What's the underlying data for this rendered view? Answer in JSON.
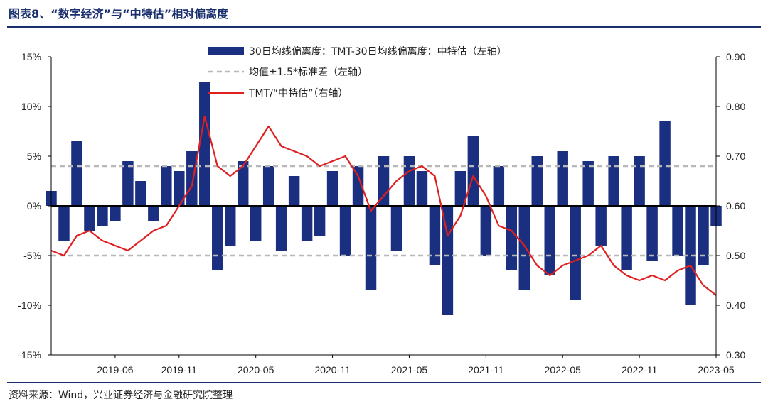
{
  "header": {
    "title": "图表8、“数字经济”与“中特估”相对偏离度"
  },
  "footer": {
    "source": "资料来源：Wind，兴业证券经济与金融研究院整理"
  },
  "chart_data": {
    "type": "bar+line",
    "title": "",
    "x_ticks": [
      "2019-06",
      "2019-11",
      "2020-05",
      "2020-11",
      "2021-05",
      "2021-11",
      "2022-05",
      "2022-11",
      "2023-05"
    ],
    "x_start": "2019-01",
    "x_end": "2023-05",
    "y_left": {
      "ticks": [
        "15%",
        "10%",
        "5%",
        "0%",
        "-5%",
        "-10%",
        "-15%"
      ],
      "min": -15,
      "max": 15
    },
    "y_right": {
      "ticks": [
        "0.90",
        "0.80",
        "0.70",
        "0.60",
        "0.50",
        "0.40",
        "0.30"
      ],
      "min": 0.3,
      "max": 0.9
    },
    "legend": [
      {
        "label": "30日均线偏离度：TMT-30日均线偏离度：中特估（左轴）",
        "kind": "bar",
        "color": "#1a2f7f"
      },
      {
        "label": "均值±1.5*标准差（左轴）",
        "kind": "dash",
        "color": "#b8b8b8"
      },
      {
        "label": "TMT/“中特估”（右轴）",
        "kind": "line",
        "color": "#e02020"
      }
    ],
    "bands": {
      "upper": 4.0,
      "lower": -5.0
    },
    "bar_series": {
      "name": "30日均线偏离度：TMT-30日均线偏离度：中特估（左轴）",
      "dates": [
        "2019-01",
        "2019-02",
        "2019-03",
        "2019-04",
        "2019-05",
        "2019-06",
        "2019-07",
        "2019-08",
        "2019-09",
        "2019-10",
        "2019-11",
        "2019-12",
        "2020-01",
        "2020-02",
        "2020-03",
        "2020-04",
        "2020-05",
        "2020-06",
        "2020-07",
        "2020-08",
        "2020-09",
        "2020-10",
        "2020-11",
        "2020-12",
        "2021-01",
        "2021-02",
        "2021-03",
        "2021-04",
        "2021-05",
        "2021-06",
        "2021-07",
        "2021-08",
        "2021-09",
        "2021-10",
        "2021-11",
        "2021-12",
        "2022-01",
        "2022-02",
        "2022-03",
        "2022-04",
        "2022-05",
        "2022-06",
        "2022-07",
        "2022-08",
        "2022-09",
        "2022-10",
        "2022-11",
        "2022-12",
        "2023-01",
        "2023-02",
        "2023-03",
        "2023-04",
        "2023-05"
      ],
      "values": [
        1.5,
        -3.5,
        6.5,
        -2.5,
        -2.0,
        -1.5,
        4.5,
        2.5,
        -1.5,
        4.0,
        3.5,
        5.5,
        12.5,
        -6.5,
        -4.0,
        4.5,
        -3.5,
        4.0,
        -4.5,
        3.0,
        -3.5,
        -3.0,
        3.5,
        -5.0,
        4.0,
        -8.5,
        5.0,
        -4.5,
        5.0,
        3.5,
        -6.0,
        -11.0,
        3.5,
        7.0,
        -5.0,
        4.0,
        -6.5,
        -8.5,
        5.0,
        -7.0,
        5.5,
        -9.5,
        4.5,
        -4.0,
        5.0,
        -6.5,
        5.0,
        -5.5,
        8.5,
        -5.0,
        -10.0,
        -6.0,
        -2.0
      ]
    },
    "line_series": {
      "name": "TMT/“中特估”（右轴）",
      "dates": [
        "2019-01",
        "2019-02",
        "2019-03",
        "2019-04",
        "2019-05",
        "2019-06",
        "2019-07",
        "2019-08",
        "2019-09",
        "2019-10",
        "2019-11",
        "2019-12",
        "2020-01",
        "2020-02",
        "2020-03",
        "2020-04",
        "2020-05",
        "2020-06",
        "2020-07",
        "2020-08",
        "2020-09",
        "2020-10",
        "2020-11",
        "2020-12",
        "2021-01",
        "2021-02",
        "2021-03",
        "2021-04",
        "2021-05",
        "2021-06",
        "2021-07",
        "2021-08",
        "2021-09",
        "2021-10",
        "2021-11",
        "2021-12",
        "2022-01",
        "2022-02",
        "2022-03",
        "2022-04",
        "2022-05",
        "2022-06",
        "2022-07",
        "2022-08",
        "2022-09",
        "2022-10",
        "2022-11",
        "2022-12",
        "2023-01",
        "2023-02",
        "2023-03",
        "2023-04",
        "2023-05"
      ],
      "values": [
        0.51,
        0.5,
        0.54,
        0.55,
        0.53,
        0.52,
        0.51,
        0.53,
        0.55,
        0.56,
        0.6,
        0.64,
        0.78,
        0.68,
        0.66,
        0.68,
        0.72,
        0.76,
        0.72,
        0.71,
        0.7,
        0.68,
        0.69,
        0.7,
        0.66,
        0.59,
        0.62,
        0.65,
        0.67,
        0.68,
        0.66,
        0.54,
        0.58,
        0.66,
        0.62,
        0.56,
        0.55,
        0.52,
        0.48,
        0.46,
        0.48,
        0.49,
        0.5,
        0.52,
        0.48,
        0.46,
        0.45,
        0.46,
        0.45,
        0.47,
        0.48,
        0.44,
        0.42
      ]
    }
  }
}
